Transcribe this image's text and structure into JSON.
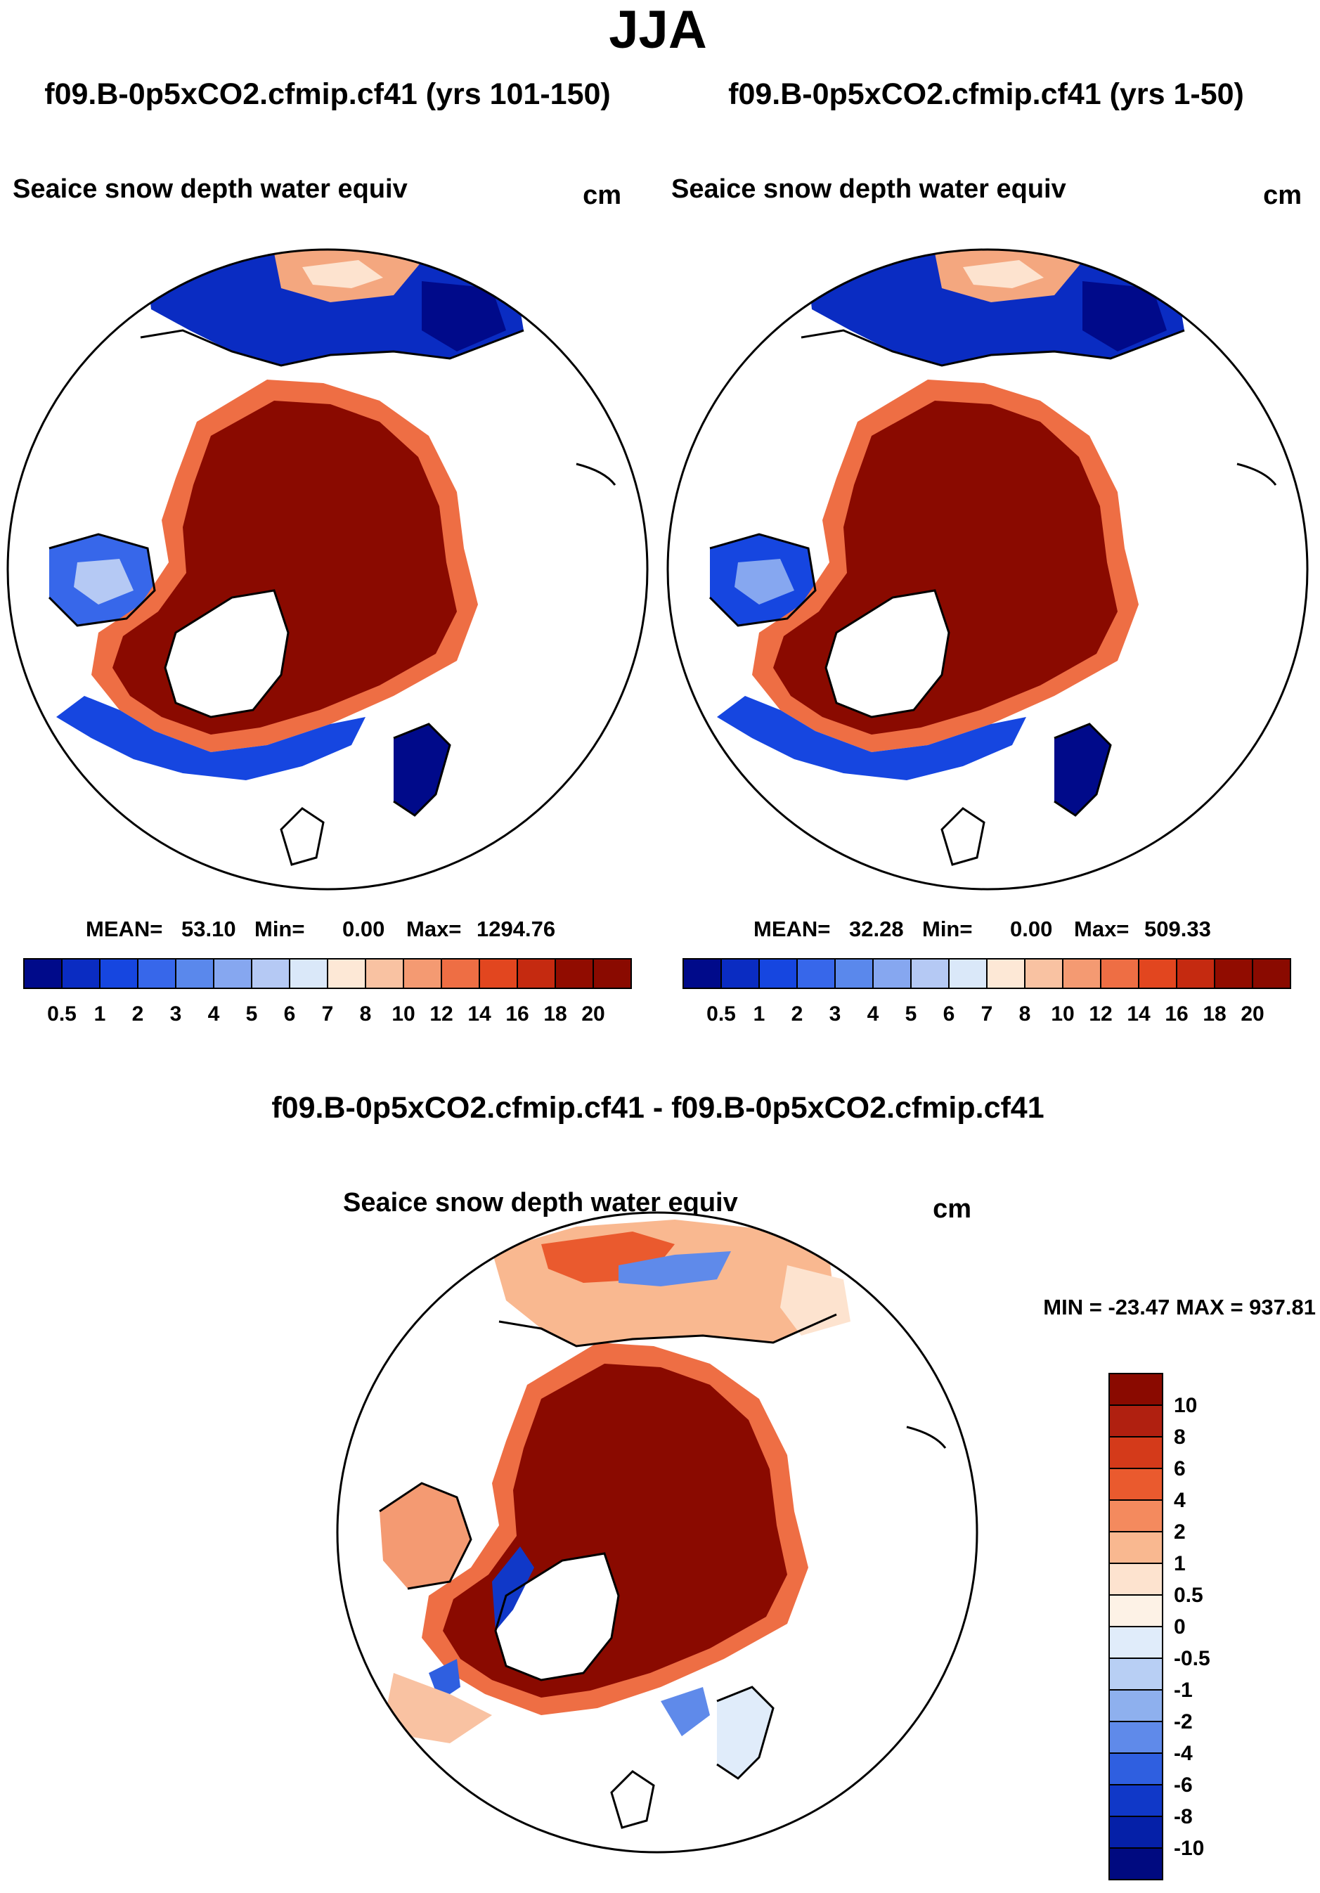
{
  "figure": {
    "season": "JJA"
  },
  "chart_data": [
    {
      "type": "heatmap",
      "projection": "north-polar-stereographic",
      "title": "f09.B-0p5xCO2.cfmip.cf41 (yrs 101-150)",
      "variable": "Seaice snow depth water equiv",
      "units": "cm",
      "stats": {
        "mean_label": "MEAN=",
        "mean": "53.10",
        "min_label": "Min=",
        "min": "0.00",
        "max_label": "Max=",
        "max": "1294.76"
      },
      "colorbar": {
        "orientation": "horizontal",
        "levels": [
          "0.5",
          "1",
          "2",
          "3",
          "4",
          "5",
          "6",
          "7",
          "8",
          "10",
          "12",
          "14",
          "16",
          "18",
          "20"
        ],
        "colors": [
          "#000a8a",
          "#0a2cc2",
          "#1646e0",
          "#3767ea",
          "#5a88ec",
          "#86a7f0",
          "#b5c9f4",
          "#dae8f9",
          "#fde8d6",
          "#f9c2a2",
          "#f49a72",
          "#ee6e44",
          "#e2461f",
          "#c52a10",
          "#910c00",
          "#8a0a00"
        ]
      }
    },
    {
      "type": "heatmap",
      "projection": "north-polar-stereographic",
      "title": "f09.B-0p5xCO2.cfmip.cf41 (yrs 1-50)",
      "variable": "Seaice snow depth water equiv",
      "units": "cm",
      "stats": {
        "mean_label": "MEAN=",
        "mean": "32.28",
        "min_label": "Min=",
        "min": "0.00",
        "max_label": "Max=",
        "max": "509.33"
      },
      "colorbar": {
        "orientation": "horizontal",
        "levels": [
          "0.5",
          "1",
          "2",
          "3",
          "4",
          "5",
          "6",
          "7",
          "8",
          "10",
          "12",
          "14",
          "16",
          "18",
          "20"
        ],
        "colors": [
          "#000a8a",
          "#0a2cc2",
          "#1646e0",
          "#3767ea",
          "#5a88ec",
          "#86a7f0",
          "#b5c9f4",
          "#dae8f9",
          "#fde8d6",
          "#f9c2a2",
          "#f49a72",
          "#ee6e44",
          "#e2461f",
          "#c52a10",
          "#910c00",
          "#8a0a00"
        ]
      }
    },
    {
      "type": "heatmap",
      "projection": "north-polar-stereographic",
      "title": "f09.B-0p5xCO2.cfmip.cf41 - f09.B-0p5xCO2.cfmip.cf41",
      "variable": "Seaice snow depth water equiv",
      "units": "cm",
      "stats": {
        "label": "MIN = -23.47 MAX = 937.81",
        "min": -23.47,
        "max": 937.81
      },
      "colorbar": {
        "orientation": "vertical",
        "levels": [
          "10",
          "8",
          "6",
          "4",
          "2",
          "1",
          "0.5",
          "0",
          "-0.5",
          "-1",
          "-2",
          "-4",
          "-6",
          "-8",
          "-10"
        ],
        "colors": [
          "#8a0a00",
          "#b02010",
          "#d43a1a",
          "#ea5a2e",
          "#f48a5e",
          "#f9b890",
          "#fde3cf",
          "#fdf2e6",
          "#e0ecfa",
          "#b8cff4",
          "#8eb0ee",
          "#5f8aea",
          "#2f5fe0",
          "#1038c8",
          "#0520a8",
          "#000a80"
        ]
      }
    }
  ]
}
